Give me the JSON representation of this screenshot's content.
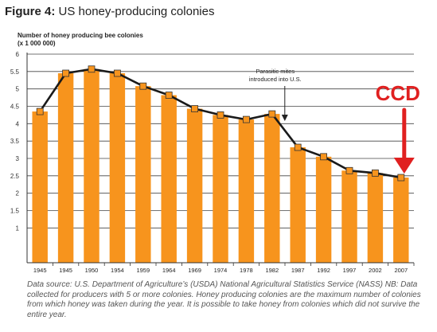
{
  "figure": {
    "label": "Figure 4:",
    "title": "US honey-producing colonies"
  },
  "source_note": "Data source: U.S. Department of Agriculture’s (USDA) National Agricultural Statistics Service (NASS) NB: Data collected for producers with 5 or more colonies. Honey producing colonies are the maximum number of colonies from which honey was taken during the year. It is possible to take honey from colonies which did not survive the entire year.",
  "chart_data": {
    "type": "bar",
    "ylabel": "Number of honey producing bee colonies\n(x 1 000 000)",
    "xlabel": "",
    "ylim": [
      0,
      6
    ],
    "yticks": [
      "1",
      "1.5",
      "2",
      "2.5",
      "3",
      "3.5",
      "4",
      "4.5",
      "5",
      "5.5",
      "6"
    ],
    "categories": [
      "1945",
      "1945",
      "1950",
      "1954",
      "1959",
      "1964",
      "1969",
      "1974",
      "1978",
      "1982",
      "1987",
      "1992",
      "1997",
      "2002",
      "2007"
    ],
    "values": [
      4.35,
      5.45,
      5.57,
      5.45,
      5.08,
      4.82,
      4.43,
      4.25,
      4.12,
      4.28,
      3.32,
      3.05,
      2.65,
      2.58,
      2.45
    ],
    "line_overlay": true,
    "grid": true,
    "colors": {
      "bar": "#f7941d",
      "line": "#1a1a1a",
      "marker": "#f7941d",
      "grid": "#444444",
      "ccd": "#e02020"
    },
    "annotations": [
      {
        "text": "Parasitic mites\nintroduced into U.S.",
        "category_index": 9
      },
      {
        "text": "CCD",
        "category_index": 14
      }
    ]
  }
}
